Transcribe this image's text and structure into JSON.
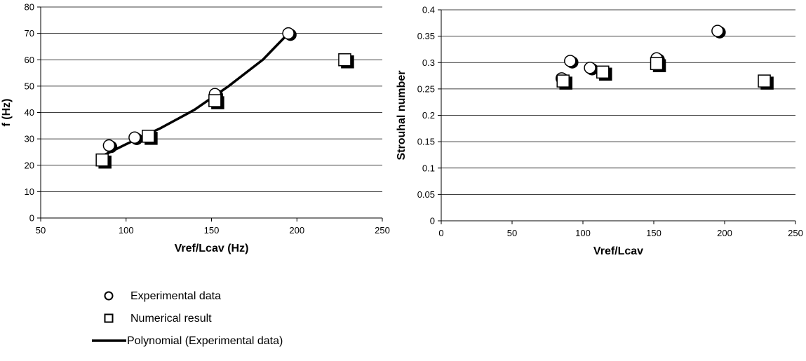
{
  "legend": [
    {
      "marker": "circle",
      "label": "Experimental data"
    },
    {
      "marker": "square",
      "label": "Numerical result"
    },
    {
      "marker": "line",
      "label": "Polynomial (Experimental data)"
    }
  ],
  "chart_data": [
    {
      "type": "scatter",
      "xlabel": "Vref/Lcav (Hz)",
      "ylabel": "f (Hz)",
      "xlim": [
        50,
        250
      ],
      "ylim": [
        0,
        80
      ],
      "xticks": [
        50,
        100,
        150,
        200,
        250
      ],
      "yticks": [
        0,
        10,
        20,
        30,
        40,
        50,
        60,
        70,
        80
      ],
      "grid": "horizontal",
      "series": [
        {
          "name": "Experimental data",
          "marker": "circle",
          "x": [
            86,
            90,
            105,
            152,
            195
          ],
          "y": [
            22,
            27.5,
            30.5,
            47,
            70
          ]
        },
        {
          "name": "Numerical result",
          "marker": "square",
          "x": [
            86,
            113,
            152,
            228
          ],
          "y": [
            22,
            31,
            44.5,
            60
          ]
        },
        {
          "name": "Polynomial (Experimental data)",
          "marker": "line",
          "x": [
            86,
            100,
            120,
            140,
            160,
            180,
            195
          ],
          "y": [
            23.5,
            28,
            34,
            41,
            50,
            60,
            70
          ]
        }
      ]
    },
    {
      "type": "scatter",
      "xlabel": "Vref/Lcav",
      "ylabel": "Strouhal number",
      "xlim": [
        0,
        250
      ],
      "ylim": [
        0,
        0.4
      ],
      "xticks": [
        0,
        50,
        100,
        150,
        200,
        250
      ],
      "yticks": [
        0,
        0.05,
        0.1,
        0.15,
        0.2,
        0.25,
        0.3,
        0.35,
        0.4
      ],
      "grid": "horizontal",
      "series": [
        {
          "name": "Experimental data",
          "marker": "circle",
          "x": [
            85,
            91,
            105,
            152,
            195
          ],
          "y": [
            0.27,
            0.303,
            0.29,
            0.308,
            0.36
          ]
        },
        {
          "name": "Numerical result",
          "marker": "square",
          "x": [
            86,
            114,
            152,
            228
          ],
          "y": [
            0.265,
            0.282,
            0.298,
            0.265
          ]
        }
      ]
    }
  ]
}
